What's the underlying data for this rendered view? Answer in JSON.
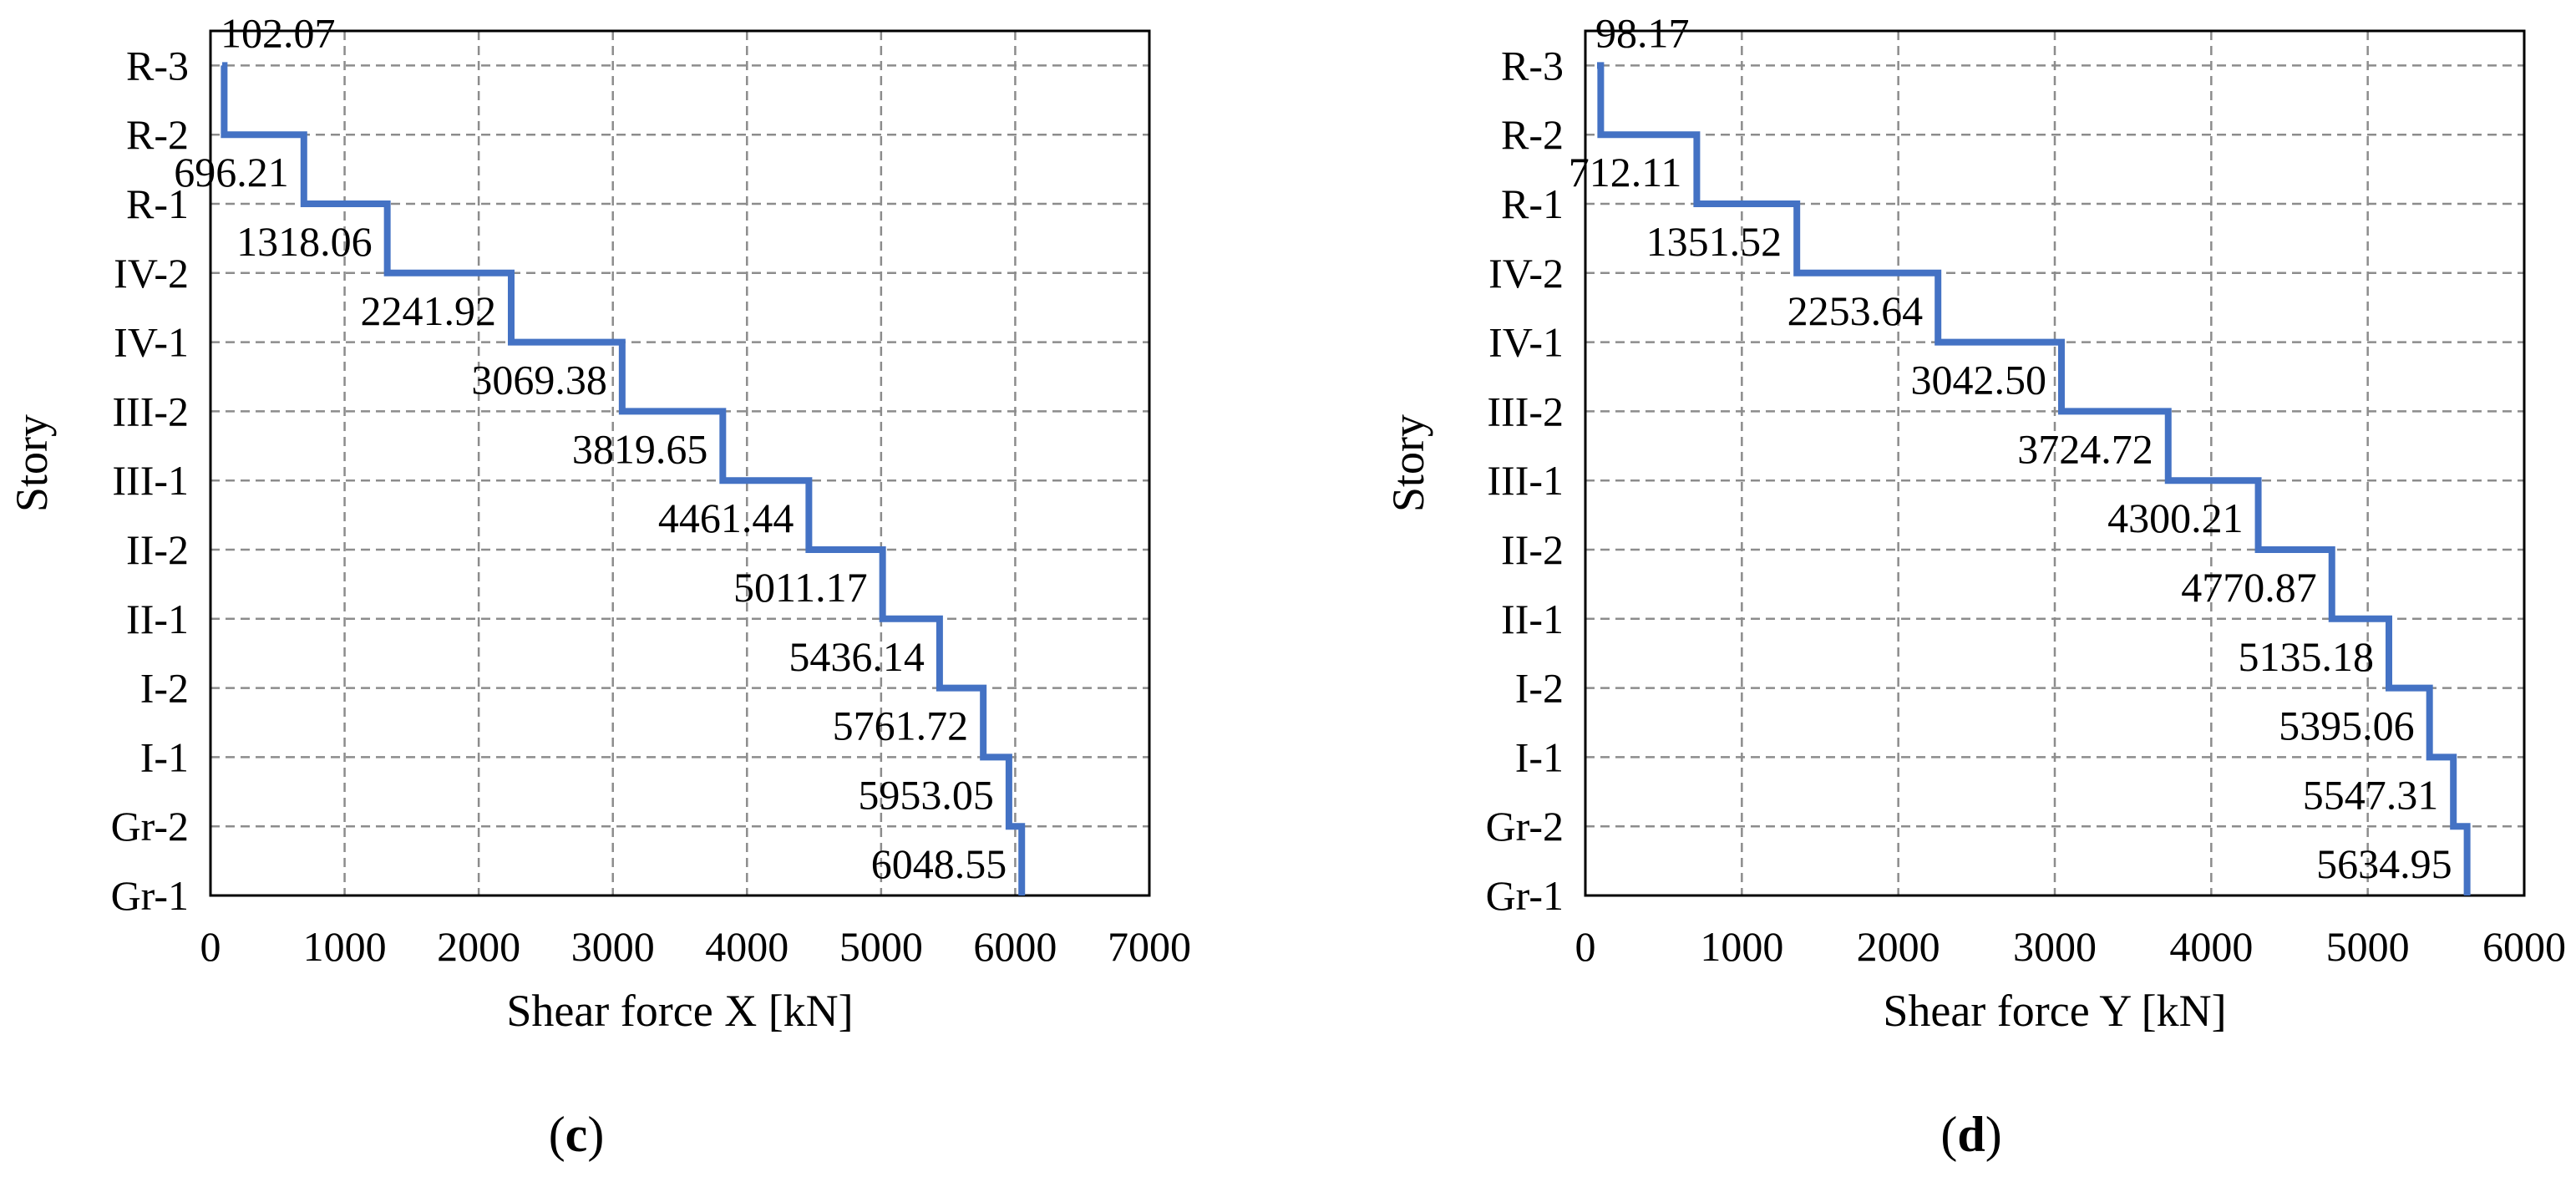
{
  "chart_data": [
    {
      "type": "line",
      "style": "stepped",
      "panel_label": {
        "open": "(",
        "letter": "c",
        "close": ")"
      },
      "xlabel": "Shear force X [kN]",
      "ylabel": "Story",
      "xlim": [
        0,
        7000
      ],
      "xticks": [
        "0",
        "1000",
        "2000",
        "3000",
        "4000",
        "5000",
        "6000",
        "7000"
      ],
      "categories": [
        "R-3",
        "R-2",
        "R-1",
        "IV-2",
        "IV-1",
        "III-2",
        "III-1",
        "II-2",
        "II-1",
        "I-2",
        "I-1",
        "Gr-2",
        "Gr-1"
      ],
      "values": [
        102.07,
        696.21,
        1318.06,
        2241.92,
        3069.38,
        3819.65,
        4461.44,
        5011.17,
        5436.14,
        5761.72,
        5953.05,
        6048.55
      ],
      "labels": [
        "102.07",
        "696.21",
        "1318.06",
        "2241.92",
        "3069.38",
        "3819.65",
        "4461.44",
        "5011.17",
        "5436.14",
        "5761.72",
        "5953.05",
        "6048.55"
      ],
      "grid": true,
      "color": "#4472C4"
    },
    {
      "type": "line",
      "style": "stepped",
      "panel_label": {
        "open": "(",
        "letter": "d",
        "close": ")"
      },
      "xlabel": "Shear force Y [kN]",
      "ylabel": "Story",
      "xlim": [
        0,
        6000
      ],
      "xticks": [
        "0",
        "1000",
        "2000",
        "3000",
        "4000",
        "5000",
        "6000"
      ],
      "categories": [
        "R-3",
        "R-2",
        "R-1",
        "IV-2",
        "IV-1",
        "III-2",
        "III-1",
        "II-2",
        "II-1",
        "I-2",
        "I-1",
        "Gr-2",
        "Gr-1"
      ],
      "values": [
        98.17,
        712.11,
        1351.52,
        2253.64,
        3042.5,
        3724.72,
        4300.21,
        4770.87,
        5135.18,
        5395.06,
        5547.31,
        5634.95
      ],
      "labels": [
        "98.17",
        "712.11",
        "1351.52",
        "2253.64",
        "3042.50",
        "3724.72",
        "4300.21",
        "4770.87",
        "5135.18",
        "5395.06",
        "5547.31",
        "5634.95"
      ],
      "grid": true,
      "color": "#4472C4"
    }
  ]
}
